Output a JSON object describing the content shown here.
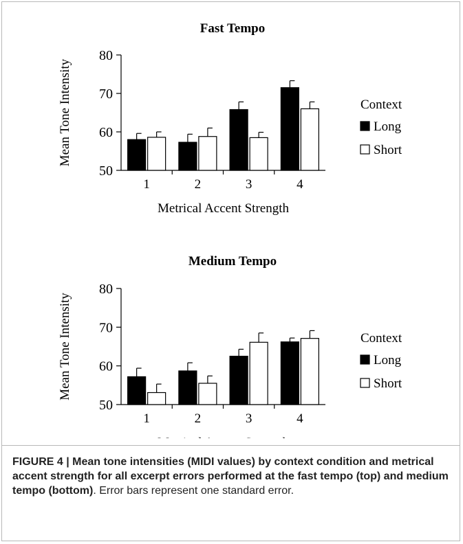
{
  "chart_data": [
    {
      "type": "bar",
      "title": "Fast Tempo",
      "xlabel": "Metrical Accent Strength",
      "ylabel": "Mean Tone Intensity",
      "ylim": [
        50,
        80
      ],
      "yticks": [
        "50",
        "60",
        "70",
        "80"
      ],
      "categories": [
        "1",
        "2",
        "3",
        "4"
      ],
      "legend_title": "Context",
      "legend_position": "right",
      "error_bars": "one standard error",
      "series": [
        {
          "name": "Long",
          "color": "#000000",
          "values": [
            58.0,
            57.3,
            65.8,
            71.5
          ],
          "errors": [
            1.6,
            2.1,
            2.0,
            1.8
          ]
        },
        {
          "name": "Short",
          "color": "#ffffff",
          "values": [
            58.6,
            58.8,
            58.5,
            66.0
          ],
          "errors": [
            1.4,
            2.2,
            1.4,
            1.8
          ]
        }
      ]
    },
    {
      "type": "bar",
      "title": "Medium Tempo",
      "xlabel": "Metrical Accent Strength",
      "ylabel": "Mean Tone Intensity",
      "ylim": [
        50,
        80
      ],
      "yticks": [
        "50",
        "60",
        "70",
        "80"
      ],
      "categories": [
        "1",
        "2",
        "3",
        "4"
      ],
      "legend_title": "Context",
      "legend_position": "right",
      "error_bars": "one standard error",
      "series": [
        {
          "name": "Long",
          "color": "#000000",
          "values": [
            57.2,
            58.7,
            62.5,
            66.2
          ],
          "errors": [
            2.2,
            2.1,
            1.8,
            1.0
          ]
        },
        {
          "name": "Short",
          "color": "#ffffff",
          "values": [
            53.1,
            55.5,
            66.1,
            67.1
          ],
          "errors": [
            2.2,
            1.9,
            2.4,
            2.0
          ]
        }
      ]
    }
  ],
  "caption": {
    "bold": "FIGURE 4 | Mean tone intensities (MIDI values) by context condition and metrical accent strength for all excerpt errors performed at the fast tempo (top) and medium tempo (bottom)",
    "rest": ". Error bars represent one standard error."
  }
}
